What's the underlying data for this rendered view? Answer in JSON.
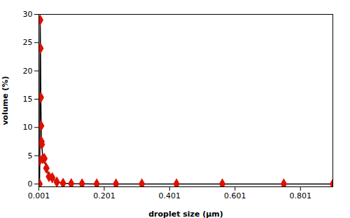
{
  "chart_data": {
    "type": "line",
    "xlabel": "droplet size (μm)",
    "ylabel": "volume (%)",
    "x": [
      0.001,
      0.002,
      0.003,
      0.004,
      0.005,
      0.006,
      0.007,
      0.008,
      0.009,
      0.01,
      0.013,
      0.018,
      0.024,
      0.032,
      0.042,
      0.056,
      0.075,
      0.1,
      0.133,
      0.178,
      0.237,
      0.316,
      0.422,
      0.562,
      0.75,
      0.9
    ],
    "series": [
      {
        "type": "line",
        "color": "#000000",
        "values": [
          0.0,
          0.0,
          0.0,
          4.2,
          29.0,
          24.0,
          15.3,
          10.3,
          7.5,
          7.0,
          4.5,
          4.5,
          2.8,
          1.3,
          1.1,
          0.35,
          0.12,
          0.05,
          0.02,
          0.01,
          0.01,
          0.0,
          0.0,
          0.0,
          0.0,
          0.0
        ]
      },
      {
        "type": "scatter",
        "color": "#dd1100",
        "marker": "diamond",
        "values": [
          0.0,
          0.0,
          0.0,
          4.2,
          29.0,
          24.0,
          15.3,
          10.3,
          7.5,
          7.0,
          4.5,
          4.5,
          2.8,
          1.3,
          1.1,
          0.35,
          0.12,
          0.05,
          0.02,
          0.01,
          0.01,
          0.0,
          0.0,
          0.0,
          0.0,
          0.0
        ]
      }
    ],
    "xlim": [
      0.001,
      0.9
    ],
    "ylim": [
      -0.5,
      30
    ],
    "xticks": [
      0.001,
      0.201,
      0.401,
      0.601,
      0.801
    ],
    "yticks": [
      0,
      5,
      10,
      15,
      20,
      25,
      30
    ],
    "grid": false
  }
}
